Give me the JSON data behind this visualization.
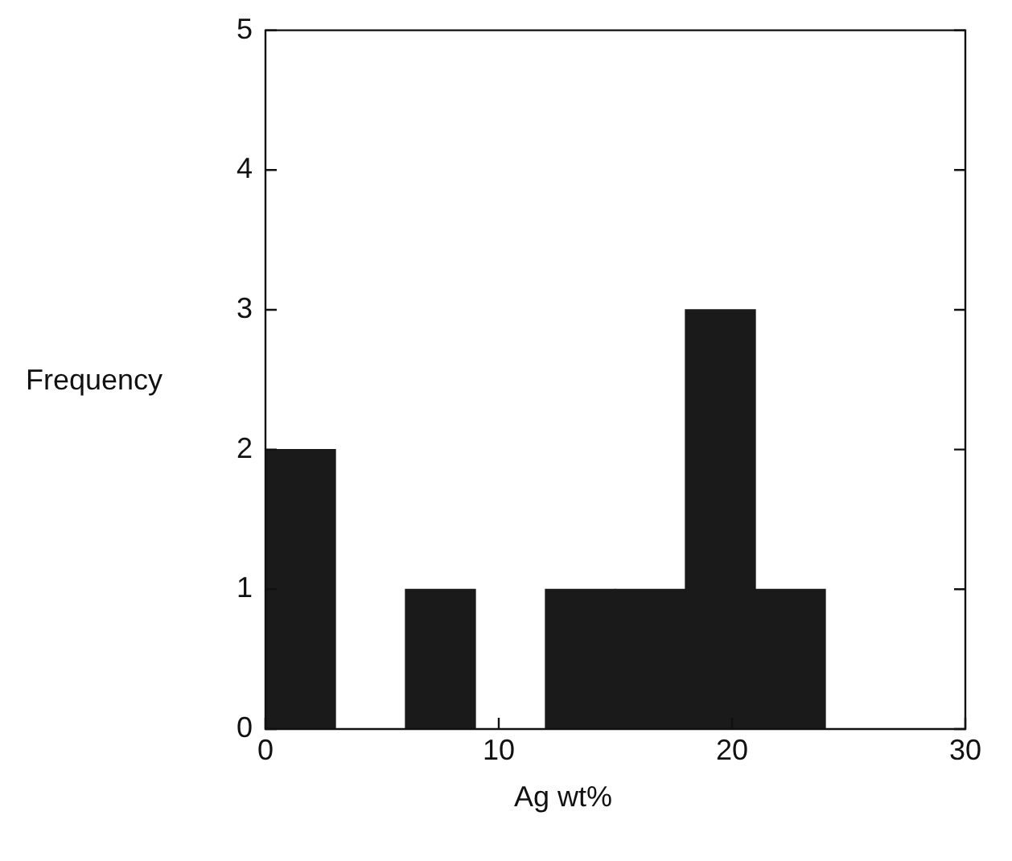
{
  "chart_data": {
    "type": "histogram",
    "xlabel": "Ag wt%",
    "ylabel": "Frequency",
    "bins": [
      0,
      3,
      6,
      9,
      12,
      15,
      18,
      21,
      24,
      27,
      30
    ],
    "values": [
      2,
      0,
      1,
      0,
      1,
      1,
      3,
      1,
      0,
      0
    ],
    "color": "#1a1a1a",
    "xlim": [
      0,
      30
    ],
    "xticks": [
      0,
      10,
      20,
      30
    ],
    "ylim": [
      0,
      5
    ],
    "yticks": [
      0,
      1,
      2,
      3,
      4,
      5
    ],
    "grid": false,
    "legend": false
  }
}
